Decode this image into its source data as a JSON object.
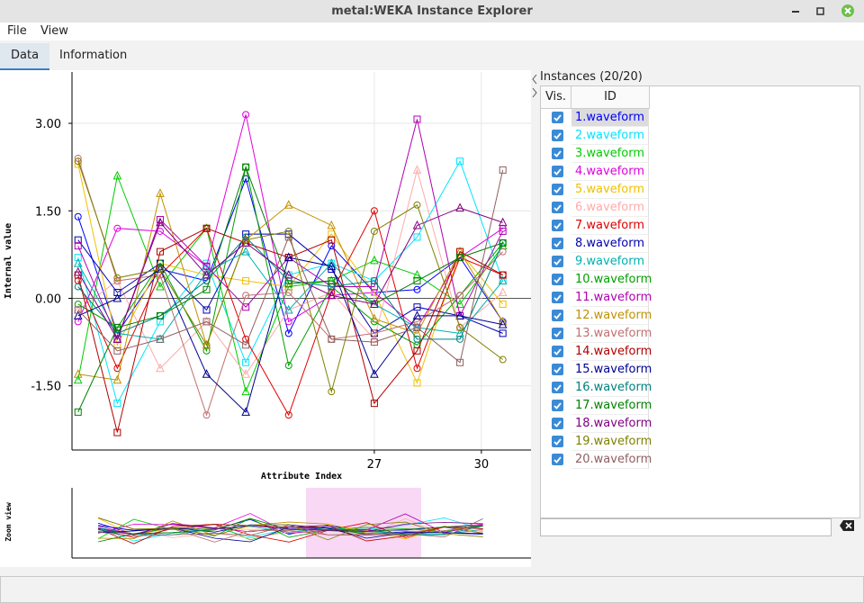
{
  "window": {
    "title": "metal:WEKA Instance Explorer"
  },
  "menu": [
    "File",
    "View"
  ],
  "tabs": [
    "Data",
    "Information"
  ],
  "chart_data": {
    "type": "line",
    "x_label": "Attribute Index",
    "y_label": "Internal value",
    "zoom_label": "Zoom view",
    "x": [
      18.7,
      19.8,
      21.0,
      22.3,
      23.4,
      24.6,
      25.8,
      27.0,
      28.2,
      29.4,
      30.6
    ],
    "xlim": [
      18.53,
      31.39
    ],
    "xticks": [
      27,
      30
    ],
    "ylim": [
      -2.6,
      3.88
    ],
    "yticks": [
      {
        "value": -1.5,
        "label": "-1.50"
      },
      {
        "value": 0,
        "label": "0.00"
      },
      {
        "value": 1.5,
        "label": "1.50"
      },
      {
        "value": 3,
        "label": "3.00"
      }
    ],
    "grid": true,
    "series": [
      {
        "name": "1.waveform",
        "color": "#0000ff",
        "marker": "circle",
        "visible": true,
        "values": [
          1.4,
          -0.6,
          0.5,
          0.3,
          2.05,
          -0.6,
          0.9,
          0.1,
          0.15,
          0.7,
          -0.4
        ]
      },
      {
        "name": "2.waveform",
        "color": "#00e5ff",
        "marker": "square",
        "visible": true,
        "values": [
          0.7,
          -1.8,
          -0.4,
          0.6,
          -1.1,
          0.4,
          0.6,
          0.3,
          1.05,
          2.35,
          0.3
        ]
      },
      {
        "name": "3.waveform",
        "color": "#00cc00",
        "marker": "triangle",
        "visible": true,
        "values": [
          -1.4,
          2.1,
          0.2,
          1.2,
          -1.6,
          0.2,
          0.3,
          0.65,
          0.4,
          -0.1,
          0.9
        ]
      },
      {
        "name": "4.waveform",
        "color": "#e000e0",
        "marker": "circle",
        "visible": true,
        "values": [
          -0.4,
          1.2,
          1.15,
          0.55,
          3.15,
          -0.4,
          0.05,
          0.1,
          -0.5,
          0.7,
          1.2
        ]
      },
      {
        "name": "5.waveform",
        "color": "#f0c000",
        "marker": "square",
        "visible": true,
        "values": [
          2.3,
          -0.8,
          0.6,
          0.4,
          0.3,
          0.2,
          1.1,
          0.1,
          -1.45,
          0.8,
          -0.1
        ]
      },
      {
        "name": "6.waveform",
        "color": "#ffaaaa",
        "marker": "triangle",
        "visible": true,
        "values": [
          -0.2,
          0.3,
          -1.2,
          -0.4,
          -1.3,
          -0.2,
          0.1,
          -0.7,
          2.2,
          -0.5,
          0.1
        ]
      },
      {
        "name": "7.waveform",
        "color": "#e00000",
        "marker": "circle",
        "visible": true,
        "values": [
          0.3,
          -1.2,
          0.4,
          1.2,
          -0.7,
          -2.0,
          0.1,
          1.5,
          -1.2,
          0.7,
          0.4
        ]
      },
      {
        "name": "8.waveform",
        "color": "#0000b0",
        "marker": "square",
        "visible": true,
        "values": [
          1.0,
          0.1,
          0.6,
          -0.2,
          1.1,
          1.1,
          0.5,
          -0.6,
          -0.15,
          -0.3,
          -0.6
        ]
      },
      {
        "name": "9.waveform",
        "color": "#00b0b0",
        "marker": "triangle",
        "visible": true,
        "values": [
          0.6,
          -0.6,
          -0.7,
          0.45,
          0.8,
          -0.2,
          0.6,
          -0.1,
          -0.5,
          -0.6,
          0.3
        ]
      },
      {
        "name": "10.waveform",
        "color": "#00a000",
        "marker": "circle",
        "visible": true,
        "values": [
          -0.1,
          -0.5,
          0.6,
          -0.9,
          2.25,
          -1.15,
          0.2,
          -0.4,
          -0.8,
          0.05,
          0.95
        ]
      },
      {
        "name": "11.waveform",
        "color": "#b000b0",
        "marker": "square",
        "visible": true,
        "values": [
          0.9,
          -0.7,
          1.35,
          0.55,
          -0.15,
          0.7,
          0.2,
          0.2,
          3.07,
          -0.3,
          1.15
        ]
      },
      {
        "name": "12.waveform",
        "color": "#c09000",
        "marker": "triangle",
        "visible": true,
        "values": [
          -1.3,
          -1.4,
          1.8,
          -0.8,
          1.0,
          1.6,
          1.25,
          -0.35,
          -0.6,
          0.8,
          -0.4
        ]
      },
      {
        "name": "13.waveform",
        "color": "#c07070",
        "marker": "circle",
        "visible": true,
        "values": [
          2.4,
          0.3,
          0.4,
          -2.0,
          0.05,
          0.1,
          -0.7,
          -0.6,
          -0.4,
          0.05,
          0.8
        ]
      },
      {
        "name": "14.waveform",
        "color": "#b00000",
        "marker": "square",
        "visible": true,
        "values": [
          0.4,
          -2.3,
          0.8,
          1.2,
          0.95,
          0.7,
          1.0,
          -1.8,
          -0.9,
          0.8,
          0.4
        ]
      },
      {
        "name": "15.waveform",
        "color": "#000090",
        "marker": "triangle",
        "visible": true,
        "values": [
          -0.3,
          0.0,
          0.5,
          -1.3,
          -1.95,
          0.7,
          0.55,
          -1.3,
          -0.3,
          -0.3,
          -0.45
        ]
      },
      {
        "name": "16.waveform",
        "color": "#008080",
        "marker": "circle",
        "visible": true,
        "values": [
          0.2,
          -0.6,
          -0.3,
          0.3,
          1.05,
          0.3,
          0.2,
          0.3,
          -0.7,
          -0.7,
          0.95
        ]
      },
      {
        "name": "17.waveform",
        "color": "#008000",
        "marker": "square",
        "visible": true,
        "values": [
          -1.95,
          -0.5,
          -0.3,
          0.15,
          2.25,
          0.25,
          0.3,
          -0.1,
          0.3,
          0.7,
          0.95
        ]
      },
      {
        "name": "18.waveform",
        "color": "#800080",
        "marker": "triangle",
        "visible": true,
        "values": [
          0.45,
          -0.7,
          1.3,
          0.4,
          0.95,
          0.4,
          0.05,
          -0.1,
          1.25,
          1.55,
          1.3
        ]
      },
      {
        "name": "19.waveform",
        "color": "#808000",
        "marker": "circle",
        "visible": true,
        "values": [
          2.35,
          0.35,
          0.5,
          -0.8,
          1.0,
          1.15,
          -1.6,
          1.15,
          1.6,
          -0.5,
          -1.05
        ]
      },
      {
        "name": "20.waveform",
        "color": "#906060",
        "marker": "square",
        "visible": true,
        "values": [
          -0.2,
          -0.9,
          -0.7,
          -0.4,
          -0.8,
          1.05,
          -0.7,
          -0.75,
          -0.5,
          -1.1,
          2.2
        ]
      }
    ]
  },
  "instances": {
    "title": "Instances (20/20)",
    "columns": [
      "Vis.",
      "ID"
    ]
  }
}
